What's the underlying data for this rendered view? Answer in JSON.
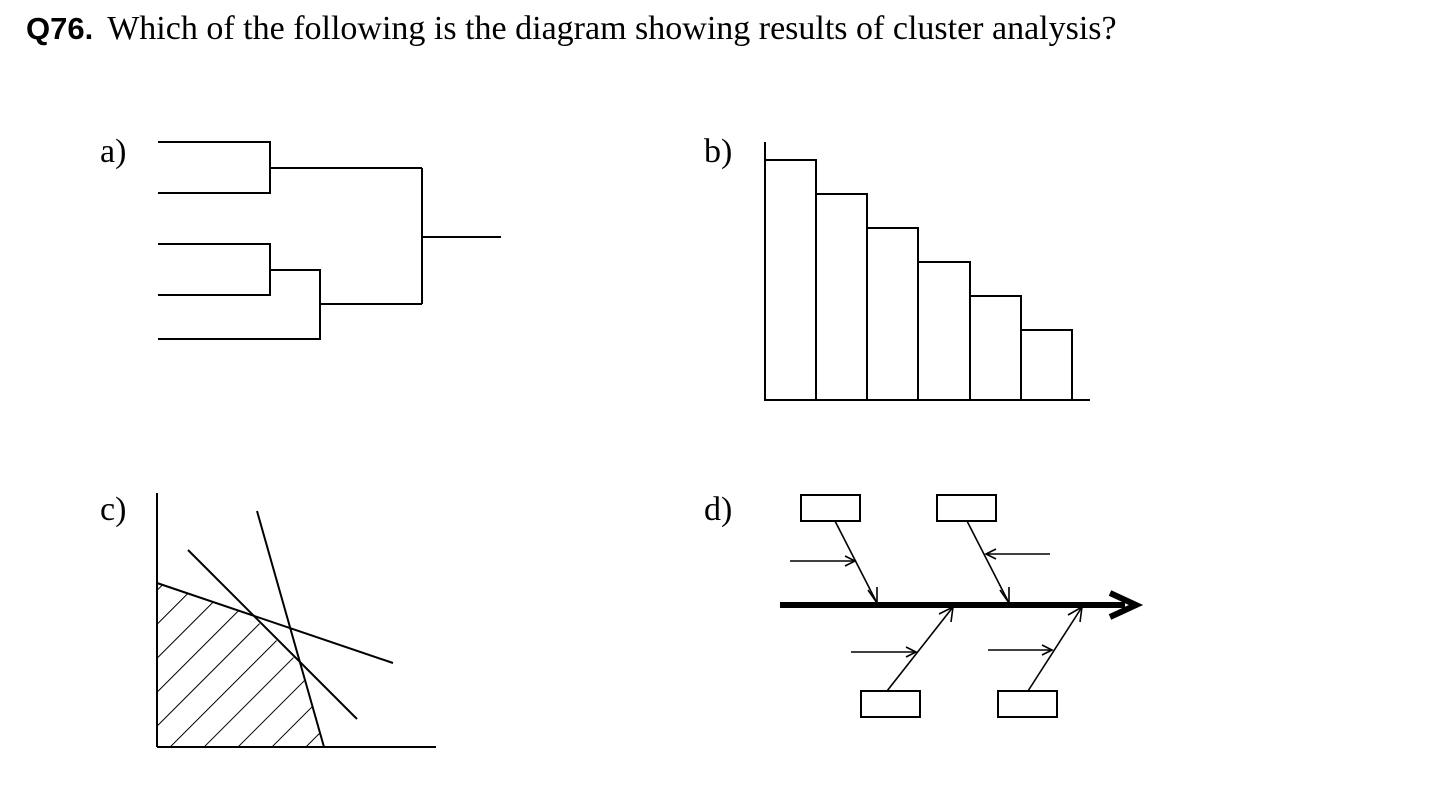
{
  "question": {
    "number": "Q76.",
    "text": "Which of the following is the diagram showing results of cluster analysis?"
  },
  "options": [
    {
      "label": "a)",
      "diagram": "dendrogram"
    },
    {
      "label": "b)",
      "diagram": "descending-bar-chart"
    },
    {
      "label": "c)",
      "diagram": "linear-programming-feasible-region"
    },
    {
      "label": "d)",
      "diagram": "fishbone-diagram"
    }
  ],
  "colors": {
    "ink": "#000000",
    "background": "#ffffff"
  }
}
